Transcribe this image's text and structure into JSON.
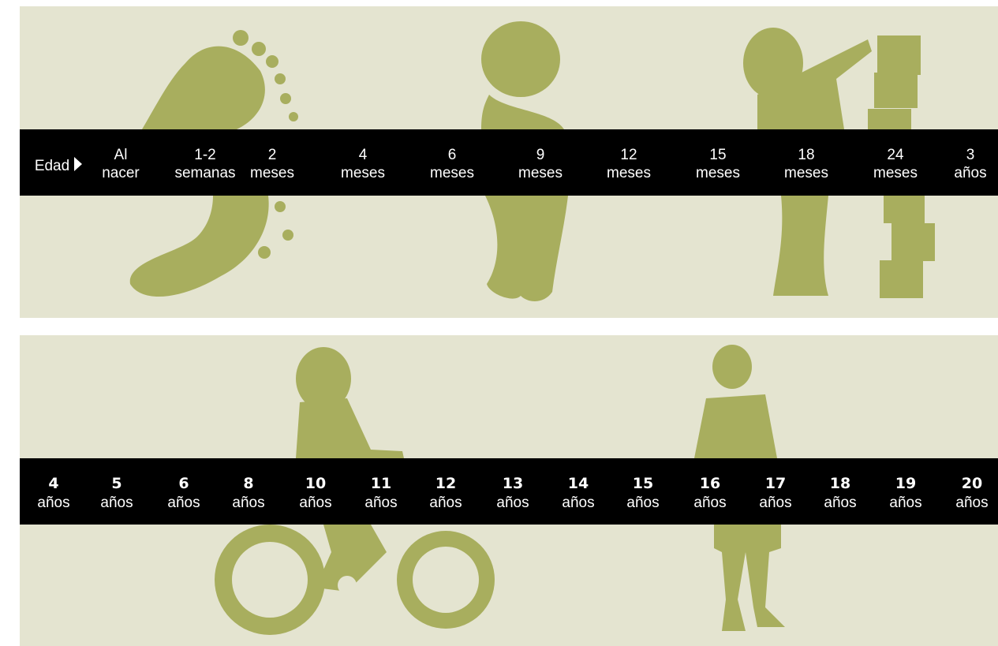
{
  "top": {
    "label": "Edad",
    "ages": [
      {
        "line1": "Al",
        "line2": "nacer"
      },
      {
        "line1": "1-2",
        "line2": "semanas"
      },
      {
        "line1": "2",
        "line2": "meses"
      },
      {
        "line1": "4",
        "line2": "meses"
      },
      {
        "line1": "6",
        "line2": "meses"
      },
      {
        "line1": "9",
        "line2": "meses"
      },
      {
        "line1": "12",
        "line2": "meses"
      },
      {
        "line1": "15",
        "line2": "meses"
      },
      {
        "line1": "18",
        "line2": "meses"
      },
      {
        "line1": "24",
        "line2": "meses"
      },
      {
        "line1": "3",
        "line2": "años"
      }
    ]
  },
  "bottom": {
    "ages": [
      {
        "number": "4",
        "unit": "años"
      },
      {
        "number": "5",
        "unit": "años"
      },
      {
        "number": "6",
        "unit": "años"
      },
      {
        "number": "8",
        "unit": "años"
      },
      {
        "number": "10",
        "unit": "años"
      },
      {
        "number": "11",
        "unit": "años"
      },
      {
        "number": "12",
        "unit": "años"
      },
      {
        "number": "13",
        "unit": "años"
      },
      {
        "number": "14",
        "unit": "años"
      },
      {
        "number": "15",
        "unit": "años"
      },
      {
        "number": "16",
        "unit": "años"
      },
      {
        "number": "17",
        "unit": "años"
      },
      {
        "number": "18",
        "unit": "años"
      },
      {
        "number": "19",
        "unit": "años"
      },
      {
        "number": "20",
        "unit": "años"
      }
    ]
  }
}
